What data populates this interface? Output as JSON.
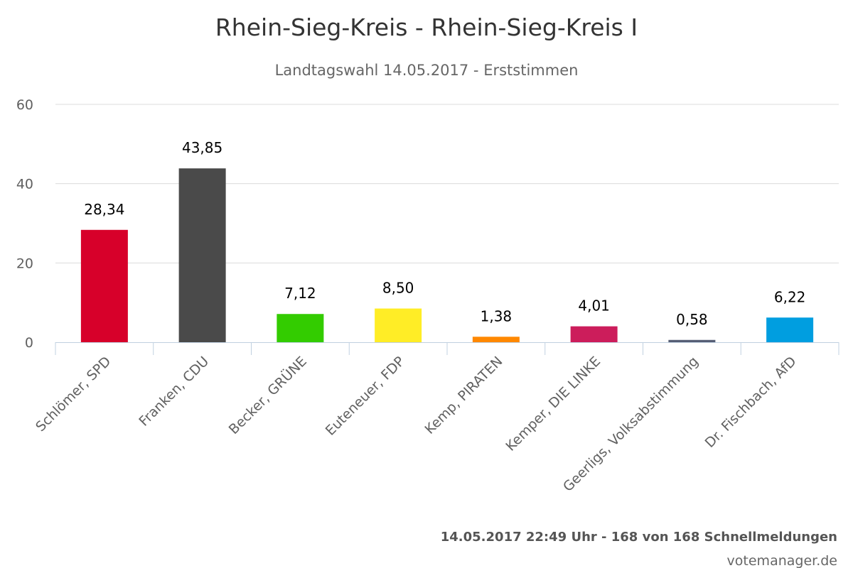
{
  "chart_data": {
    "type": "bar",
    "title": "Rhein-Sieg-Kreis - Rhein-Sieg-Kreis I",
    "subtitle": "Landtagswahl 14.05.2017 - Erststimmen",
    "xlabel": "",
    "ylabel": "",
    "ylim": [
      0,
      60
    ],
    "yticks": [
      0,
      20,
      40,
      60
    ],
    "grid": true,
    "legend": "none",
    "categories": [
      "Schlömer, SPD",
      "Franken, CDU",
      "Becker, GRÜNE",
      "Euteneuer, FDP",
      "Kemp, PIRATEN",
      "Kemper, DIE LINKE",
      "Geerligs, Volksabstimmung",
      "Dr. Fischbach, AfD"
    ],
    "values": [
      28.34,
      43.85,
      7.12,
      8.5,
      1.38,
      4.01,
      0.58,
      6.22
    ],
    "data_labels": [
      "28,34",
      "43,85",
      "7,12",
      "8,50",
      "1,38",
      "4,01",
      "0,58",
      "6,22"
    ],
    "colors": [
      "#d7002a",
      "#4a4a4a",
      "#33cc00",
      "#ffed26",
      "#ff8800",
      "#cc1d5b",
      "#565e75",
      "#009ee0"
    ]
  },
  "footer": {
    "status": "14.05.2017 22:49 Uhr - 168 von 168 Schnellmeldungen",
    "credit": "votemanager.de"
  }
}
